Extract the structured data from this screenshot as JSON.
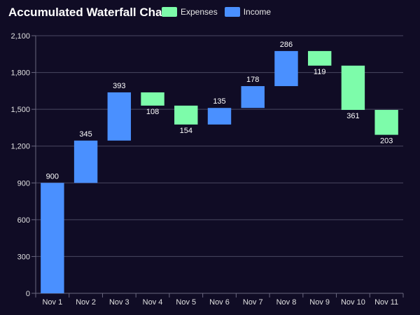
{
  "chart_data": {
    "type": "bar",
    "title": "Accumulated Waterfall Chart",
    "categories": [
      "Nov 1",
      "Nov 2",
      "Nov 3",
      "Nov 4",
      "Nov 5",
      "Nov 6",
      "Nov 7",
      "Nov 8",
      "Nov 9",
      "Nov 10",
      "Nov 11"
    ],
    "series": [
      {
        "name": "Expenses",
        "color": "#7dfcaa"
      },
      {
        "name": "Income",
        "color": "#4a90ff"
      }
    ],
    "bars": [
      {
        "category": "Nov 1",
        "series": "Income",
        "start": 0,
        "end": 900,
        "label": "900"
      },
      {
        "category": "Nov 2",
        "series": "Income",
        "start": 900,
        "end": 1245,
        "label": "345"
      },
      {
        "category": "Nov 3",
        "series": "Income",
        "start": 1245,
        "end": 1638,
        "label": "393"
      },
      {
        "category": "Nov 4",
        "series": "Expenses",
        "start": 1638,
        "end": 1530,
        "label": "108"
      },
      {
        "category": "Nov 5",
        "series": "Expenses",
        "start": 1530,
        "end": 1376,
        "label": "154"
      },
      {
        "category": "Nov 6",
        "series": "Income",
        "start": 1376,
        "end": 1511,
        "label": "135"
      },
      {
        "category": "Nov 7",
        "series": "Income",
        "start": 1511,
        "end": 1689,
        "label": "178"
      },
      {
        "category": "Nov 8",
        "series": "Income",
        "start": 1689,
        "end": 1975,
        "label": "286"
      },
      {
        "category": "Nov 9",
        "series": "Expenses",
        "start": 1975,
        "end": 1856,
        "label": "119"
      },
      {
        "category": "Nov 10",
        "series": "Expenses",
        "start": 1856,
        "end": 1495,
        "label": "361"
      },
      {
        "category": "Nov 11",
        "series": "Expenses",
        "start": 1495,
        "end": 1292,
        "label": "203"
      }
    ],
    "ylim": [
      0,
      2100
    ],
    "yticks": [
      0,
      300,
      600,
      900,
      1200,
      1500,
      1800,
      2100
    ],
    "ytick_labels": [
      "0",
      "300",
      "600",
      "900",
      "1,200",
      "1,500",
      "1,800",
      "2,100"
    ],
    "grid": true,
    "legend_position": "top"
  }
}
